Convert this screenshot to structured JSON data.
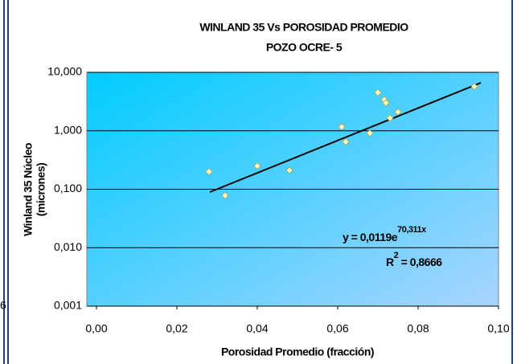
{
  "fragment": "6",
  "chart_data": {
    "type": "scatter",
    "title": "WINLAND 35 Vs POROSIDAD PROMEDIO",
    "subtitle": "POZO OCRE- 5",
    "x_label": "Porosidad Promedio (fracción)",
    "y_label": [
      "Winland 35 Núcleo",
      "(micrones)"
    ],
    "equation": {
      "base": "y = 0,0119e",
      "exponent": "70,311x"
    },
    "r_squared": {
      "base": "R",
      "exponent": "2",
      "rest": " = 0,8666"
    },
    "x": [
      0.028,
      0.032,
      0.04,
      0.048,
      0.061,
      0.062,
      0.068,
      0.07,
      0.0716,
      0.072,
      0.073,
      0.075,
      0.094
    ],
    "values": [
      0.2,
      0.078,
      0.25,
      0.21,
      1.17,
      0.65,
      0.91,
      4.5,
      3.4,
      3.0,
      1.65,
      2.1,
      5.7
    ],
    "color": "#ffffc0",
    "xlim": [
      0,
      0.1
    ],
    "xticks": [
      {
        "value": 0,
        "label": "0,00"
      },
      {
        "value": 0.02,
        "label": "0,02"
      },
      {
        "value": 0.04,
        "label": "0,04"
      },
      {
        "value": 0.06,
        "label": "0,06"
      },
      {
        "value": 0.08,
        "label": "0,08"
      },
      {
        "value": 0.1,
        "label": "0,10"
      }
    ],
    "ylim": [
      0.001,
      10
    ],
    "yticks": [
      {
        "value": 0.001,
        "label": "0,001"
      },
      {
        "value": 0.01,
        "label": "0,010"
      },
      {
        "value": 0.1,
        "label": "0,100"
      },
      {
        "value": 1,
        "label": "1,000"
      },
      {
        "value": 10,
        "label": "10,000"
      }
    ],
    "log_y": true,
    "grid": true
  }
}
